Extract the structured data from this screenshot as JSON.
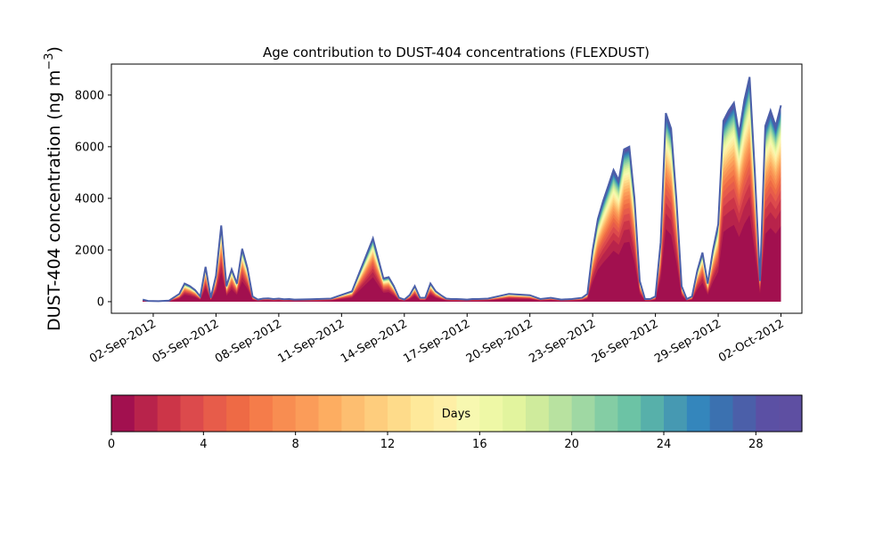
{
  "chart_data": {
    "type": "area",
    "title": "Age contribution to DUST-404 concentrations (FLEXDUST)",
    "ylabel_main": "DUST-404 concentration (ng m",
    "ylabel_sup": "−3",
    "ylabel_close": ")",
    "xlabel": "",
    "ylim": [
      -450,
      9200
    ],
    "xlim": [
      "2012-08-31T00:00",
      "2012-10-03T00:00"
    ],
    "x_ticks": [
      "02-Sep-2012",
      "05-Sep-2012",
      "08-Sep-2012",
      "11-Sep-2012",
      "14-Sep-2012",
      "17-Sep-2012",
      "20-Sep-2012",
      "23-Sep-2012",
      "26-Sep-2012",
      "29-Sep-2012",
      "02-Oct-2012"
    ],
    "y_ticks": [
      "0",
      "2000",
      "4000",
      "6000",
      "8000"
    ],
    "colorbar": {
      "label": "Days",
      "min": 0,
      "max": 30,
      "ticks": [
        "0",
        "4",
        "8",
        "12",
        "16",
        "20",
        "24",
        "28"
      ],
      "colors": [
        "#a2104f",
        "#b8234b",
        "#cc3548",
        "#dc4a4c",
        "#e75c4a",
        "#ee6a45",
        "#f57c4a",
        "#f88d51",
        "#fb9c59",
        "#fdad61",
        "#fdbe70",
        "#fecd7d",
        "#fedb8a",
        "#fee99a",
        "#feefa6",
        "#f7f8b0",
        "#eef8a6",
        "#e2f49e",
        "#cfeb9c",
        "#b8e2a0",
        "#9fd8a3",
        "#84cda4",
        "#6cc3a5",
        "#57b0aa",
        "#4699b2",
        "#3486bc",
        "#3b71b0",
        "#4b5fa9",
        "#5b50a4",
        "#5e4fa2"
      ]
    },
    "series_total": {
      "x": [
        "2012-09-01T12:00",
        "2012-09-01T18:00",
        "2012-09-02T06:00",
        "2012-09-02T18:00",
        "2012-09-03T06:00",
        "2012-09-03T12:00",
        "2012-09-03T18:00",
        "2012-09-04T00:00",
        "2012-09-04T06:00",
        "2012-09-04T12:00",
        "2012-09-04T18:00",
        "2012-09-05T00:00",
        "2012-09-05T06:00",
        "2012-09-05T12:00",
        "2012-09-05T18:00",
        "2012-09-06T00:00",
        "2012-09-06T06:00",
        "2012-09-06T12:00",
        "2012-09-06T18:00",
        "2012-09-07T00:00",
        "2012-09-07T06:00",
        "2012-09-07T12:00",
        "2012-09-07T18:00",
        "2012-09-08T00:00",
        "2012-09-08T06:00",
        "2012-09-08T12:00",
        "2012-09-08T18:00",
        "2012-09-09T12:00",
        "2012-09-10T12:00",
        "2012-09-11T12:00",
        "2012-09-12T12:00",
        "2012-09-13T00:00",
        "2012-09-13T06:00",
        "2012-09-13T12:00",
        "2012-09-13T18:00",
        "2012-09-14T00:00",
        "2012-09-14T06:00",
        "2012-09-14T12:00",
        "2012-09-14T18:00",
        "2012-09-15T00:00",
        "2012-09-15T06:00",
        "2012-09-15T12:00",
        "2012-09-15T18:00",
        "2012-09-16T00:00",
        "2012-09-16T06:00",
        "2012-09-16T12:00",
        "2012-09-16T18:00",
        "2012-09-17T00:00",
        "2012-09-17T06:00",
        "2012-09-17T12:00",
        "2012-09-18T00:00",
        "2012-09-19T00:00",
        "2012-09-20T00:00",
        "2012-09-20T12:00",
        "2012-09-21T00:00",
        "2012-09-21T12:00",
        "2012-09-22T00:00",
        "2012-09-22T12:00",
        "2012-09-22T18:00",
        "2012-09-23T00:00",
        "2012-09-23T06:00",
        "2012-09-23T12:00",
        "2012-09-23T18:00",
        "2012-09-24T00:00",
        "2012-09-24T06:00",
        "2012-09-24T12:00",
        "2012-09-24T18:00",
        "2012-09-25T00:00",
        "2012-09-25T06:00",
        "2012-09-25T12:00",
        "2012-09-25T18:00",
        "2012-09-26T00:00",
        "2012-09-26T06:00",
        "2012-09-26T12:00",
        "2012-09-26T18:00",
        "2012-09-27T00:00",
        "2012-09-27T06:00",
        "2012-09-27T12:00",
        "2012-09-27T18:00",
        "2012-09-28T00:00",
        "2012-09-28T06:00",
        "2012-09-28T12:00",
        "2012-09-28T18:00",
        "2012-09-29T00:00",
        "2012-09-29T06:00",
        "2012-09-29T12:00",
        "2012-09-29T18:00",
        "2012-09-30T00:00",
        "2012-09-30T06:00",
        "2012-09-30T12:00",
        "2012-09-30T18:00",
        "2012-10-01T00:00",
        "2012-10-01T06:00",
        "2012-10-01T12:00",
        "2012-10-01T18:00",
        "2012-10-02T00:00"
      ],
      "y": [
        80,
        30,
        20,
        40,
        300,
        700,
        600,
        450,
        200,
        1350,
        150,
        1000,
        2950,
        600,
        1250,
        700,
        2050,
        1300,
        200,
        80,
        120,
        130,
        100,
        120,
        90,
        100,
        80,
        90,
        120,
        400,
        2450,
        900,
        950,
        600,
        150,
        80,
        250,
        600,
        150,
        150,
        700,
        400,
        250,
        120,
        100,
        100,
        90,
        80,
        100,
        100,
        120,
        300,
        250,
        100,
        150,
        80,
        100,
        150,
        300,
        2000,
        3200,
        3900,
        4500,
        5100,
        4700,
        5900,
        6000,
        4000,
        800,
        100,
        100,
        200,
        2300,
        7300,
        6700,
        4000,
        600,
        100,
        200,
        1200,
        1900,
        700,
        2000,
        3000,
        7000,
        7400,
        7700,
        6500,
        7800,
        8700,
        5000,
        800,
        6800,
        7400,
        6800,
        7600
      ]
    }
  }
}
